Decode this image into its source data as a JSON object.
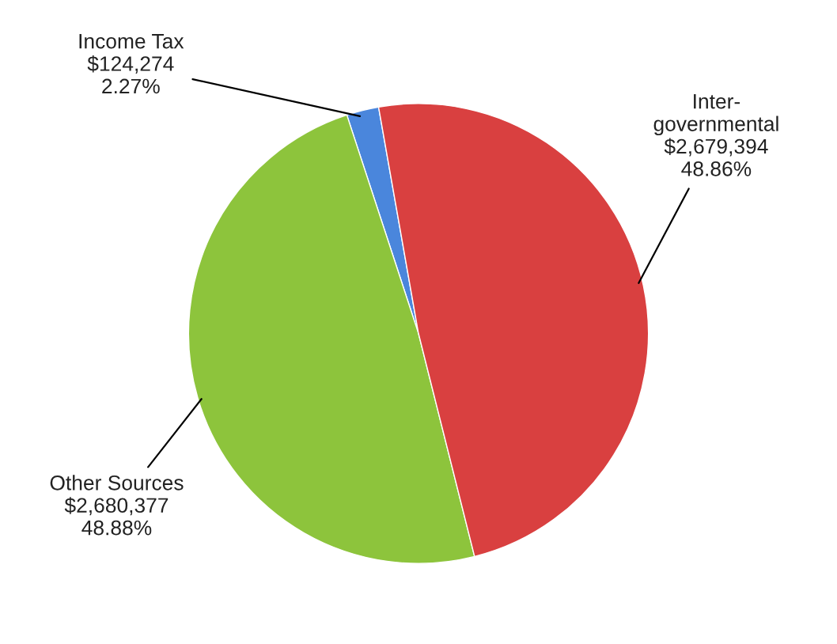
{
  "chart_data": {
    "type": "pie",
    "categories": [
      "Income Tax",
      "Other Sources",
      "Inter-\ngovernmental"
    ],
    "values": [
      124274,
      2680377,
      2679394
    ],
    "colors": [
      "#4a86dc",
      "#8dc43c",
      "#d94040"
    ],
    "value_labels": [
      "$124,274\n2.27%",
      "$2,680,377\n48.88%",
      "$2,679,394\n48.86%"
    ]
  }
}
